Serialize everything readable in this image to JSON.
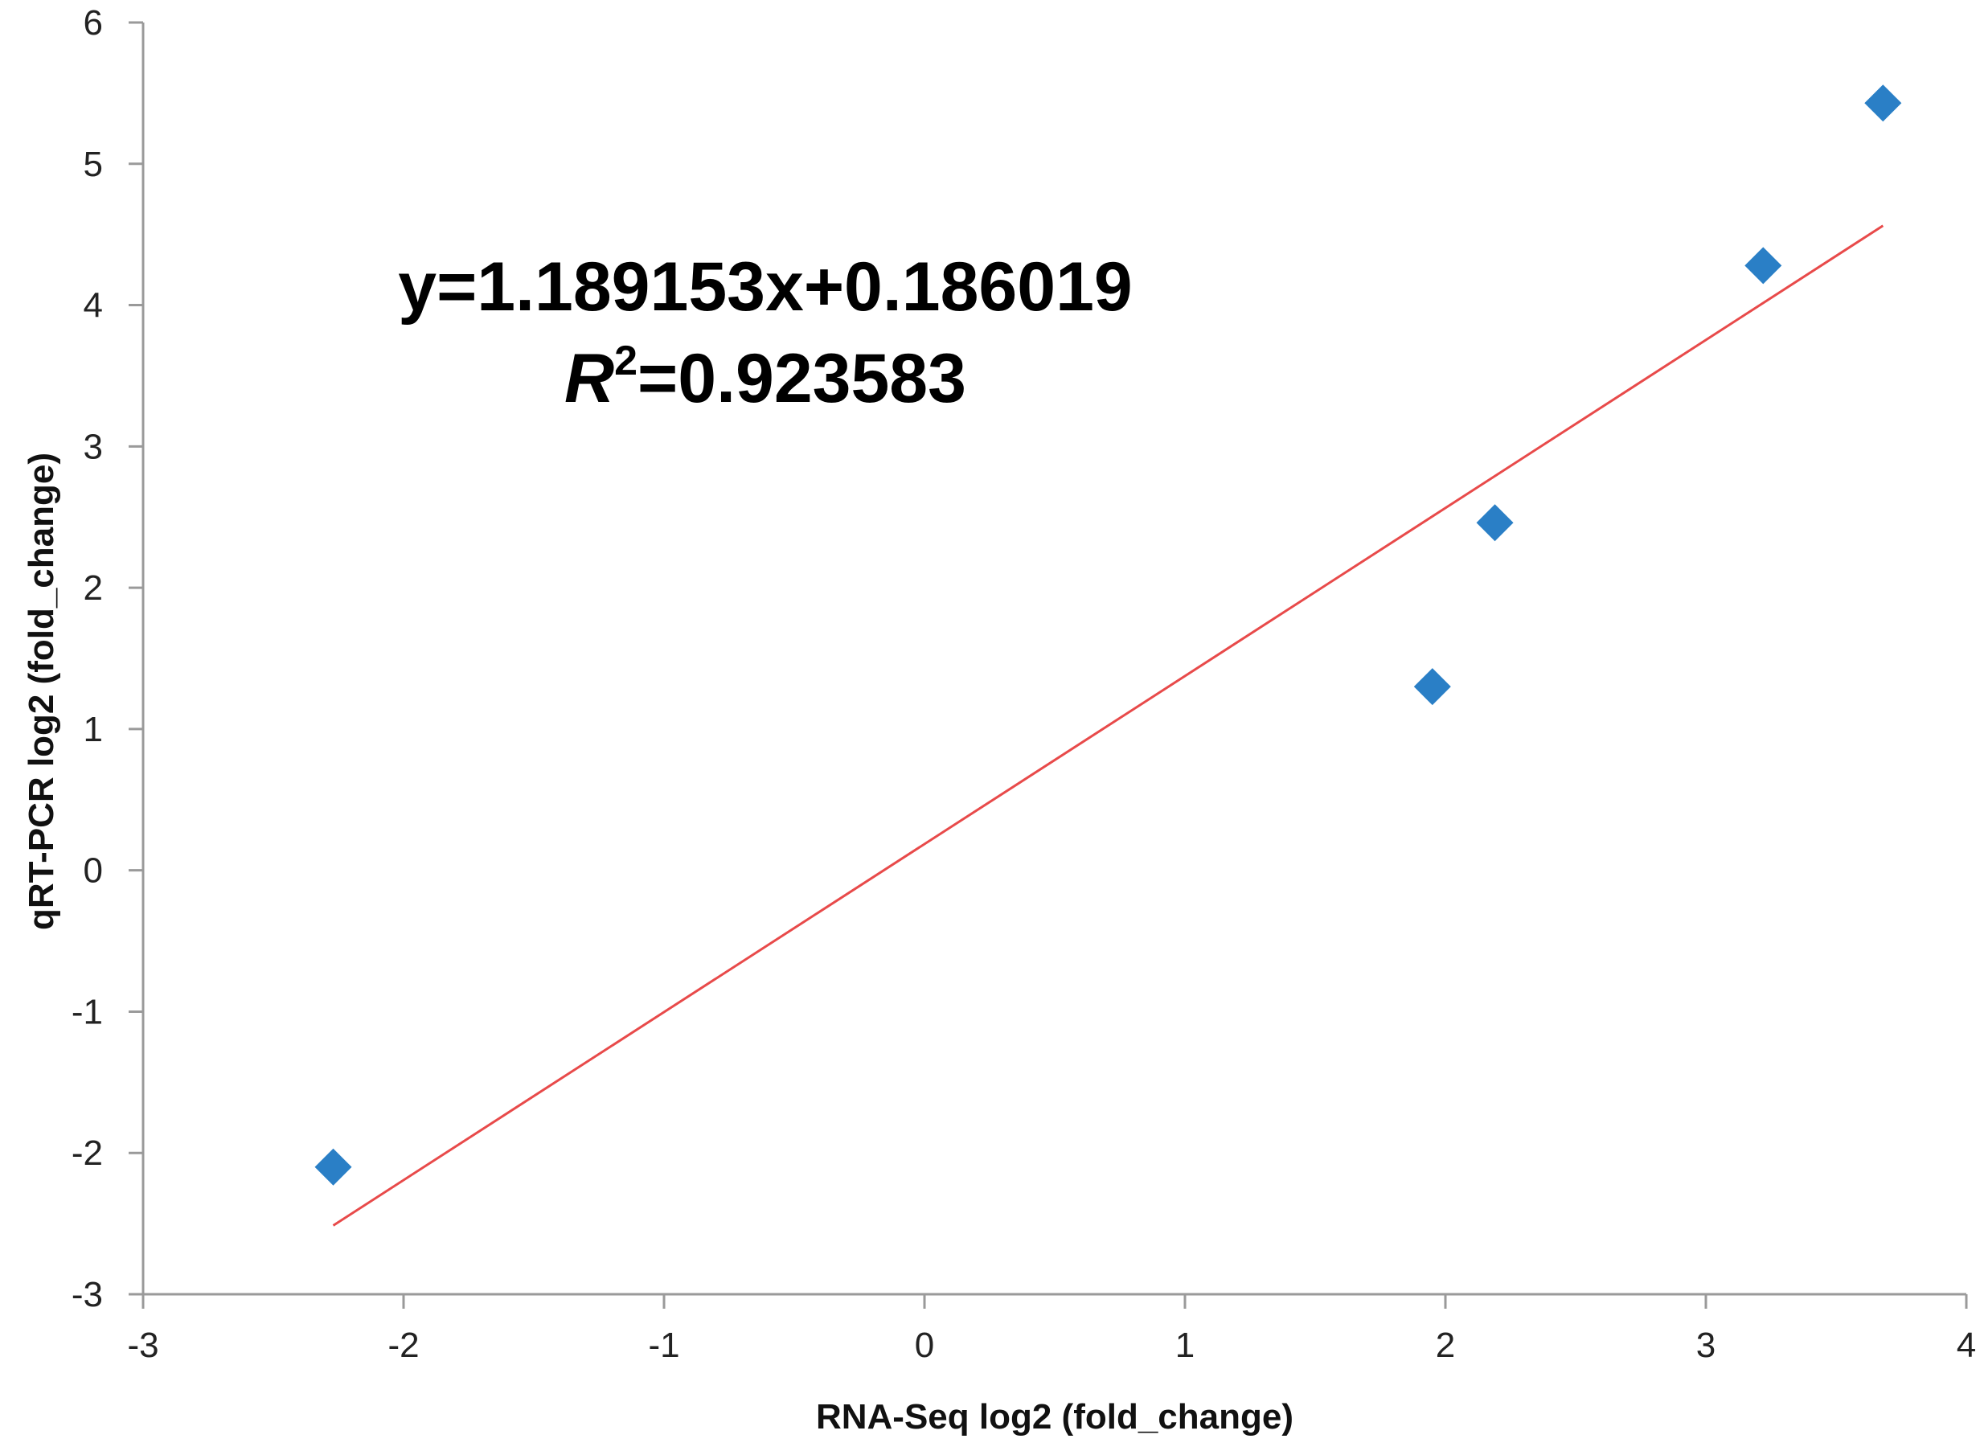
{
  "chart_data": {
    "type": "scatter",
    "title": "",
    "xlabel": "RNA-Seq log2 (fold_change)",
    "ylabel": "qRT-PCR log2 (fold_change)",
    "xlim": [
      -3,
      4
    ],
    "ylim": [
      -3,
      6
    ],
    "xticks": [
      "-3",
      "-2",
      "-1",
      "0",
      "1",
      "2",
      "3",
      "4"
    ],
    "yticks": [
      "-3",
      "-2",
      "-1",
      "0",
      "1",
      "2",
      "3",
      "4",
      "5",
      "6"
    ],
    "grid": false,
    "legend": "none",
    "series": [
      {
        "marker": "diamond",
        "color": "#2A7FC6",
        "points": [
          {
            "x": -2.27,
            "y": -2.1
          },
          {
            "x": 1.95,
            "y": 1.3
          },
          {
            "x": 2.19,
            "y": 2.46
          },
          {
            "x": 3.22,
            "y": 4.28
          },
          {
            "x": 3.68,
            "y": 5.43
          }
        ]
      }
    ],
    "trendline": {
      "type": "linear",
      "color": "#E84A4A",
      "slope": 1.189153,
      "intercept": 0.186019,
      "x_range": [
        -2.27,
        3.68
      ]
    },
    "annotations": {
      "equation": "y=1.189153x+0.186019",
      "r2_symbol": "R",
      "r2_exponent": "2",
      "r2_value": "=0.923583"
    }
  }
}
